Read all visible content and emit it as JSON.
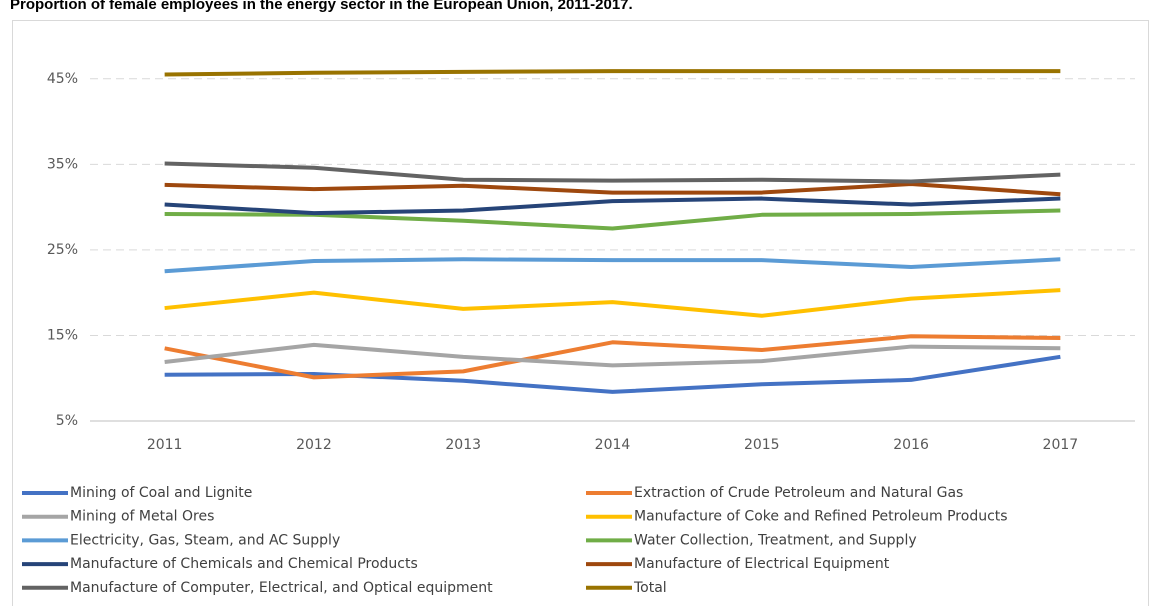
{
  "chart_data": {
    "type": "line",
    "title": "Proportion of female employees in the energy sector in the European Union, 2011-2017.",
    "categories": [
      "2011",
      "2012",
      "2013",
      "2014",
      "2015",
      "2016",
      "2017"
    ],
    "ylim": [
      5,
      50
    ],
    "yticks": [
      {
        "value": 5,
        "label": "5%"
      },
      {
        "value": 15,
        "label": "15%"
      },
      {
        "value": 25,
        "label": "25%"
      },
      {
        "value": 35,
        "label": "35%"
      },
      {
        "value": 45,
        "label": "45%"
      }
    ],
    "grid": true,
    "legend": "bottom",
    "series": [
      {
        "name": "Mining of Coal and Lignite",
        "color": "#4472c4",
        "values": [
          10.4,
          10.5,
          9.7,
          8.4,
          9.3,
          9.8,
          12.5
        ]
      },
      {
        "name": "Extraction of Crude Petroleum and Natural Gas",
        "color": "#ed7d31",
        "values": [
          13.5,
          10.1,
          10.8,
          14.2,
          13.3,
          14.9,
          14.7
        ]
      },
      {
        "name": "Mining of Metal Ores",
        "color": "#a5a5a5",
        "values": [
          11.9,
          13.9,
          12.5,
          11.5,
          12.0,
          13.7,
          13.5
        ]
      },
      {
        "name": "Manufacture of Coke and Refined Petroleum Products",
        "color": "#ffc000",
        "values": [
          18.2,
          20.0,
          18.1,
          18.9,
          17.3,
          19.3,
          20.3
        ]
      },
      {
        "name": "Electricity, Gas, Steam, and AC Supply",
        "color": "#5b9bd5",
        "values": [
          22.5,
          23.7,
          23.9,
          23.8,
          23.8,
          23.0,
          23.9
        ]
      },
      {
        "name": "Water Collection, Treatment, and Supply",
        "color": "#70ad47",
        "values": [
          29.2,
          29.1,
          28.4,
          27.5,
          29.1,
          29.2,
          29.6
        ]
      },
      {
        "name": "Manufacture of Chemicals and Chemical Products",
        "color": "#264478",
        "values": [
          30.3,
          29.3,
          29.6,
          30.7,
          31.0,
          30.3,
          31.0
        ]
      },
      {
        "name": "Manufacture of Electrical Equipment",
        "color": "#9e480e",
        "values": [
          32.6,
          32.1,
          32.5,
          31.7,
          31.7,
          32.7,
          31.5
        ]
      },
      {
        "name": "Manufacture of Computer, Electrical, and Optical equipment",
        "color": "#636363",
        "values": [
          35.1,
          34.6,
          33.2,
          33.1,
          33.2,
          33.0,
          33.8
        ]
      },
      {
        "name": "Total",
        "color": "#997300",
        "values": [
          45.5,
          45.7,
          45.8,
          45.9,
          45.9,
          45.9,
          45.9
        ]
      }
    ]
  }
}
